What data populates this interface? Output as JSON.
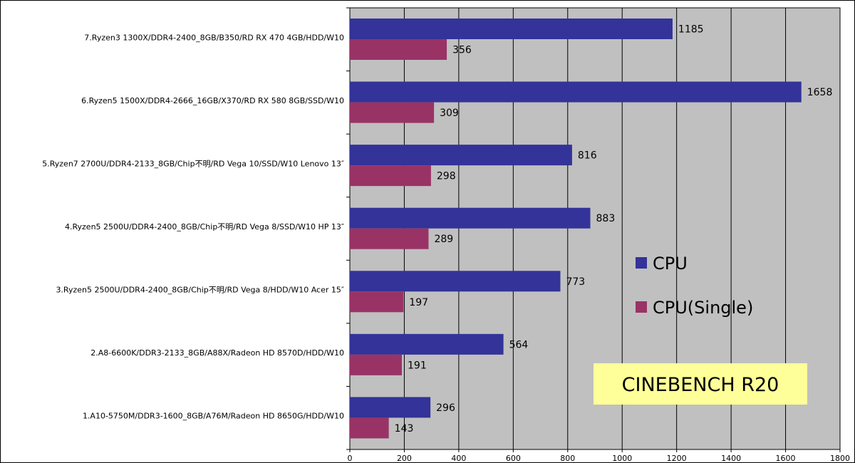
{
  "chart_data": {
    "type": "bar",
    "orientation": "horizontal",
    "title": "",
    "xlabel": "",
    "ylabel": "",
    "xlim": [
      0,
      1800
    ],
    "x_ticks": [
      0,
      200,
      400,
      600,
      800,
      1000,
      1200,
      1400,
      1600,
      1800
    ],
    "grid": "vertical",
    "legend_position": "right",
    "annotation": "CINEBENCH R20",
    "categories": [
      "7.Ryzen3 1300X/DDR4-2400_8GB/B350/RD RX 470 4GB/HDD/W10",
      "6.Ryzen5 1500X/DDR4-2666_16GB/X370/RD RX 580 8GB/SSD/W10",
      "5.Ryzen7 2700U/DDR4-2133_8GB/Chip不明/RD Vega 10/SSD/W10 Lenovo 13″",
      "4.Ryzen5 2500U/DDR4-2400_8GB/Chip不明/RD Vega  8/SSD/W10 HP 13″",
      "3.Ryzen5 2500U/DDR4-2400_8GB/Chip不明/RD Vega  8/HDD/W10 Acer 15″",
      "2.A8-6600K/DDR3-2133_8GB/A88X/Radeon HD 8570D/HDD/W10",
      "1.A10-5750M/DDR3-1600_8GB/A76M/Radeon HD 8650G/HDD/W10"
    ],
    "series": [
      {
        "name": "CPU",
        "color": "#333399",
        "values": [
          1185,
          1658,
          816,
          883,
          773,
          564,
          296
        ]
      },
      {
        "name": "CPU(Single)",
        "color": "#993366",
        "values": [
          356,
          309,
          298,
          289,
          197,
          191,
          143
        ]
      }
    ]
  },
  "colors": {
    "plot_background": "#c0c0c0",
    "grid": "#000000",
    "annotation_background": "#ffff99"
  }
}
